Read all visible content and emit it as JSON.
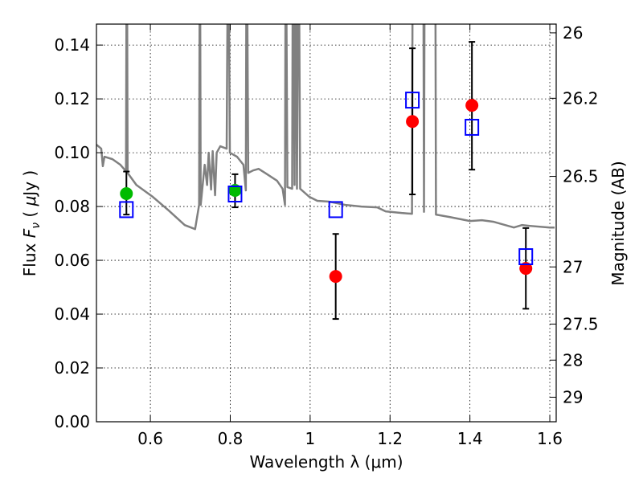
{
  "chart_data": {
    "type": "scatter",
    "title": "",
    "xlabel": "Wavelength  λ (μm)",
    "ylabel": "Flux  F_ν  ( μJy )",
    "ylabel_parts": [
      "Flux  ",
      "F",
      "ν",
      "  ( ",
      "μ",
      "Jy )"
    ],
    "y2label": "Magnitude (AB)",
    "xlim": [
      0.465,
      1.616
    ],
    "ylim": [
      0.0,
      0.1478
    ],
    "grid": true,
    "xticks": [
      0.6,
      0.8,
      1.0,
      1.2,
      1.4,
      1.6
    ],
    "xtick_labels": [
      "0.6",
      "0.8",
      "1",
      "1.2",
      "1.4",
      "1.6"
    ],
    "yticks": [
      0,
      0.02,
      0.04,
      0.06,
      0.08,
      0.1,
      0.12,
      0.14
    ],
    "ytick_labels": [
      "0.00",
      "0.02",
      "0.04",
      "0.06",
      "0.08",
      "0.10",
      "0.12",
      "0.14"
    ],
    "y2ticks_mag": [
      26,
      26.2,
      26.5,
      27,
      27.5,
      28,
      29
    ],
    "y2tick_labels": [
      "26",
      "26.2",
      "26.5",
      "27",
      "27.5",
      "28",
      "29"
    ],
    "colors": {
      "model": "#808080",
      "green": "#00bb00",
      "red": "#ff0000",
      "blue": "#0000ff",
      "err": "#000000"
    },
    "series": [
      {
        "name": "model spectrum",
        "kind": "line",
        "points": [
          [
            0.465,
            0.103
          ],
          [
            0.477,
            0.1015
          ],
          [
            0.481,
            0.095
          ],
          [
            0.485,
            0.0985
          ],
          [
            0.505,
            0.0976
          ],
          [
            0.525,
            0.0955
          ],
          [
            0.539,
            0.0931
          ],
          [
            0.541,
            0.2
          ],
          [
            0.543,
            0.0925
          ],
          [
            0.565,
            0.088
          ],
          [
            0.606,
            0.0836
          ],
          [
            0.646,
            0.0785
          ],
          [
            0.686,
            0.0731
          ],
          [
            0.712,
            0.0716
          ],
          [
            0.722,
            0.0806
          ],
          [
            0.724,
            0.2
          ],
          [
            0.726,
            0.0806
          ],
          [
            0.736,
            0.0955
          ],
          [
            0.742,
            0.088
          ],
          [
            0.746,
            0.1
          ],
          [
            0.752,
            0.0863
          ],
          [
            0.756,
            0.1006
          ],
          [
            0.762,
            0.0842
          ],
          [
            0.766,
            0.1
          ],
          [
            0.775,
            0.1024
          ],
          [
            0.791,
            0.1015
          ],
          [
            0.795,
            0.2
          ],
          [
            0.799,
            0.1
          ],
          [
            0.817,
            0.0985
          ],
          [
            0.833,
            0.0955
          ],
          [
            0.839,
            0.086
          ],
          [
            0.841,
            0.2
          ],
          [
            0.845,
            0.0925
          ],
          [
            0.857,
            0.0934
          ],
          [
            0.871,
            0.094
          ],
          [
            0.887,
            0.0925
          ],
          [
            0.917,
            0.0896
          ],
          [
            0.931,
            0.0866
          ],
          [
            0.937,
            0.0806
          ],
          [
            0.939,
            0.2
          ],
          [
            0.943,
            0.0872
          ],
          [
            0.955,
            0.0866
          ],
          [
            0.957,
            0.2
          ],
          [
            0.961,
            0.088
          ],
          [
            0.963,
            0.2
          ],
          [
            0.967,
            0.0866
          ],
          [
            0.971,
            0.2
          ],
          [
            0.975,
            0.0866
          ],
          [
            0.998,
            0.0836
          ],
          [
            1.018,
            0.0821
          ],
          [
            1.048,
            0.0818
          ],
          [
            1.088,
            0.0806
          ],
          [
            1.128,
            0.08
          ],
          [
            1.168,
            0.0797
          ],
          [
            1.189,
            0.0782
          ],
          [
            1.229,
            0.0776
          ],
          [
            1.255,
            0.0773
          ],
          [
            1.257,
            0.2
          ],
          [
            1.283,
            0.2
          ],
          [
            1.285,
            0.078
          ],
          [
            1.287,
            0.2
          ],
          [
            1.313,
            0.2
          ],
          [
            1.315,
            0.077
          ],
          [
            1.349,
            0.0761
          ],
          [
            1.4,
            0.0746
          ],
          [
            1.43,
            0.0749
          ],
          [
            1.46,
            0.0743
          ],
          [
            1.51,
            0.0722
          ],
          [
            1.53,
            0.0731
          ],
          [
            1.55,
            0.0728
          ],
          [
            1.6,
            0.0722
          ],
          [
            1.612,
            0.0722
          ]
        ]
      },
      {
        "name": "green observed",
        "kind": "points",
        "color": "green",
        "points": [
          {
            "x": 0.54,
            "y": 0.0848,
            "ylo": 0.077,
            "yhi": 0.093
          },
          {
            "x": 0.812,
            "y": 0.086,
            "ylo": 0.0797,
            "yhi": 0.092
          }
        ]
      },
      {
        "name": "red observed",
        "kind": "points",
        "color": "red",
        "points": [
          {
            "x": 1.064,
            "y": 0.054,
            "ylo": 0.0382,
            "yhi": 0.0698
          },
          {
            "x": 1.256,
            "y": 0.1116,
            "ylo": 0.0845,
            "yhi": 0.1388
          },
          {
            "x": 1.405,
            "y": 0.1176,
            "ylo": 0.0937,
            "yhi": 0.1412
          },
          {
            "x": 1.54,
            "y": 0.057,
            "ylo": 0.042,
            "yhi": 0.072
          }
        ]
      },
      {
        "name": "model photometry",
        "kind": "squares",
        "color": "blue",
        "points": [
          {
            "x": 0.54,
            "y": 0.079
          },
          {
            "x": 0.812,
            "y": 0.0848
          },
          {
            "x": 1.064,
            "y": 0.079
          },
          {
            "x": 1.256,
            "y": 0.1197
          },
          {
            "x": 1.405,
            "y": 0.1096
          },
          {
            "x": 1.54,
            "y": 0.0615
          }
        ]
      }
    ]
  }
}
